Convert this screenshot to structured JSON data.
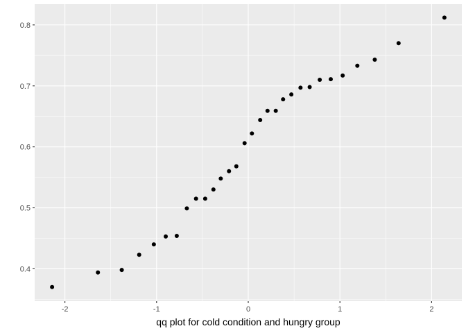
{
  "chart_data": {
    "type": "scatter",
    "title": "",
    "xlabel": "qq plot for cold condition and hungry group",
    "ylabel": "",
    "xlim": [
      -2.33,
      2.33
    ],
    "ylim": [
      0.347,
      0.834
    ],
    "x_ticks": [
      -2,
      -1,
      0,
      1,
      2
    ],
    "x_tick_labels": [
      "-2",
      "-1",
      "0",
      "1",
      "2"
    ],
    "y_ticks": [
      0.4,
      0.5,
      0.6,
      0.7,
      0.8
    ],
    "y_tick_labels": [
      "0.4",
      "0.5",
      "0.6",
      "0.7",
      "0.8"
    ],
    "grid": true,
    "colors": {
      "panel": "#ebebeb",
      "grid": "#ffffff",
      "point": "#000000"
    },
    "series": [
      {
        "x": [
          -2.14,
          -1.64,
          -1.38,
          -1.19,
          -1.03,
          -0.9,
          -0.78,
          -0.67,
          -0.57,
          -0.47,
          -0.38,
          -0.3,
          -0.21,
          -0.13,
          -0.04,
          0.04,
          0.13,
          0.21,
          0.3,
          0.38,
          0.47,
          0.57,
          0.67,
          0.78,
          0.9,
          1.03,
          1.19,
          1.38,
          1.64,
          2.14
        ],
        "y": [
          0.37,
          0.394,
          0.398,
          0.423,
          0.44,
          0.453,
          0.454,
          0.499,
          0.515,
          0.515,
          0.53,
          0.548,
          0.56,
          0.568,
          0.606,
          0.622,
          0.644,
          0.659,
          0.659,
          0.678,
          0.686,
          0.697,
          0.698,
          0.71,
          0.711,
          0.717,
          0.733,
          0.743,
          0.77,
          0.812
        ]
      }
    ]
  }
}
